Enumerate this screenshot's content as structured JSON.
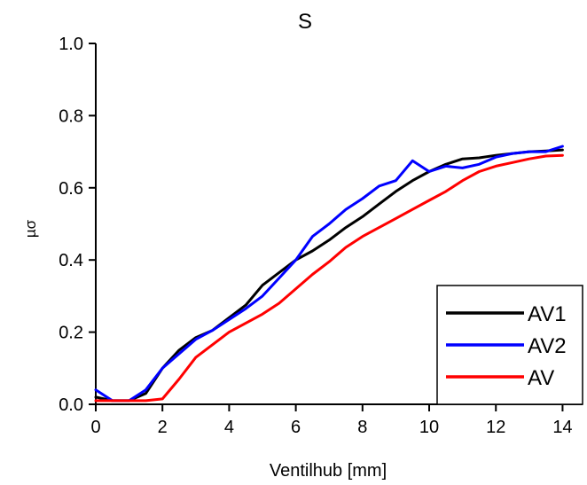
{
  "chart_data": {
    "type": "line",
    "title": "S",
    "xlabel": "Ventilhub [mm]",
    "ylabel": "µσ",
    "xlim": [
      0,
      14.6
    ],
    "ylim": [
      0,
      1.0
    ],
    "x_ticks": [
      0,
      2,
      4,
      6,
      8,
      10,
      12,
      14
    ],
    "y_ticks": [
      0.0,
      0.2,
      0.4,
      0.6,
      0.8,
      1.0
    ],
    "x_tick_labels": [
      "0",
      "2",
      "4",
      "6",
      "8",
      "10",
      "12",
      "14"
    ],
    "y_tick_labels": [
      "0.0",
      "0.2",
      "0.4",
      "0.6",
      "0.8",
      "1.0"
    ],
    "grid": false,
    "legend_position": "bottom-right",
    "series": [
      {
        "name": "AV1",
        "color": "#000000",
        "x": [
          0,
          0.5,
          1,
          1.5,
          2,
          2.5,
          3,
          3.5,
          4,
          4.5,
          5,
          5.5,
          6,
          6.5,
          7,
          7.5,
          8,
          8.5,
          9,
          9.5,
          10,
          10.5,
          11,
          11.5,
          12,
          12.5,
          13,
          13.5,
          14
        ],
        "y": [
          0.02,
          0.01,
          0.01,
          0.03,
          0.1,
          0.15,
          0.185,
          0.205,
          0.24,
          0.275,
          0.33,
          0.365,
          0.4,
          0.425,
          0.455,
          0.49,
          0.52,
          0.555,
          0.59,
          0.62,
          0.645,
          0.665,
          0.68,
          0.683,
          0.69,
          0.695,
          0.7,
          0.702,
          0.705
        ]
      },
      {
        "name": "AV2",
        "color": "#0000ff",
        "x": [
          0,
          0.5,
          1,
          1.5,
          2,
          2.5,
          3,
          3.5,
          4,
          4.5,
          5,
          5.5,
          6,
          6.5,
          7,
          7.5,
          8,
          8.5,
          9,
          9.5,
          10,
          10.5,
          11,
          11.5,
          12,
          12.5,
          13,
          13.5,
          14
        ],
        "y": [
          0.04,
          0.01,
          0.01,
          0.04,
          0.1,
          0.14,
          0.18,
          0.205,
          0.235,
          0.265,
          0.3,
          0.35,
          0.4,
          0.465,
          0.5,
          0.54,
          0.57,
          0.605,
          0.62,
          0.675,
          0.645,
          0.66,
          0.655,
          0.665,
          0.685,
          0.695,
          0.7,
          0.7,
          0.715
        ]
      },
      {
        "name": "AV",
        "color": "#ff0000",
        "x": [
          0,
          0.5,
          1,
          1.5,
          2,
          2.5,
          3,
          3.5,
          4,
          4.5,
          5,
          5.5,
          6,
          6.5,
          7,
          7.5,
          8,
          8.5,
          9,
          9.5,
          10,
          10.5,
          11,
          11.5,
          12,
          12.5,
          13,
          13.5,
          14
        ],
        "y": [
          0.01,
          0.01,
          0.01,
          0.01,
          0.015,
          0.07,
          0.13,
          0.165,
          0.2,
          0.225,
          0.25,
          0.28,
          0.32,
          0.36,
          0.395,
          0.435,
          0.465,
          0.49,
          0.515,
          0.54,
          0.565,
          0.59,
          0.62,
          0.645,
          0.66,
          0.67,
          0.68,
          0.688,
          0.69
        ]
      }
    ]
  }
}
